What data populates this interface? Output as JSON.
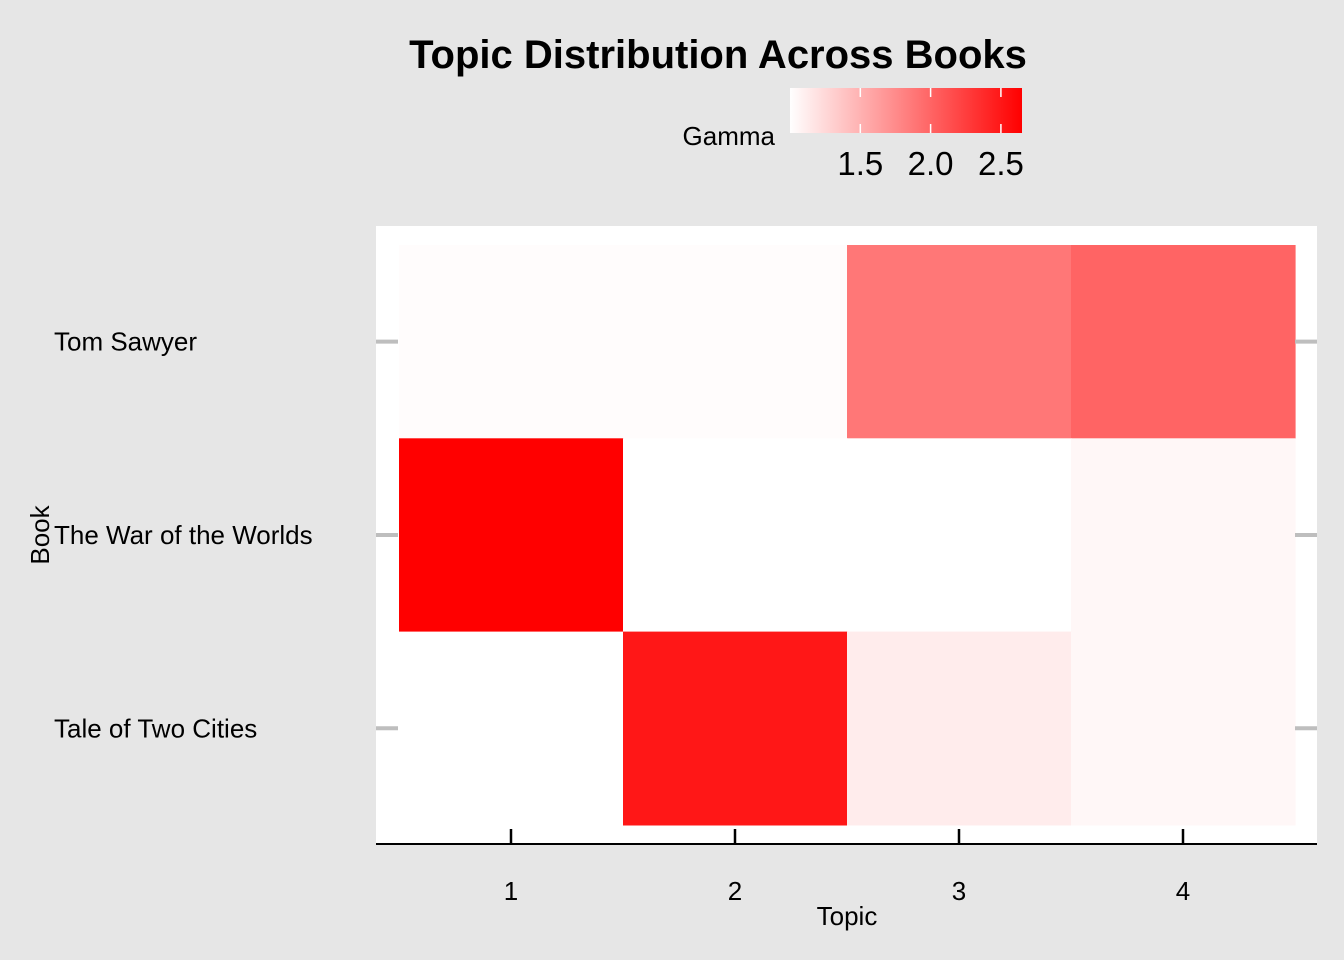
{
  "chart_data": {
    "type": "heatmap",
    "title": "Topic Distribution Across Books",
    "xlabel": "Topic",
    "ylabel": "Book",
    "x_categories": [
      "1",
      "2",
      "3",
      "4"
    ],
    "y_categories": [
      "Tom Sawyer",
      "The War of the Worlds",
      "Tale of Two Cities"
    ],
    "values": [
      [
        1.02,
        1.02,
        1.88,
        2.0
      ],
      [
        2.65,
        1.0,
        1.0,
        1.05
      ],
      [
        1.0,
        2.5,
        1.12,
        1.05
      ]
    ],
    "legend": {
      "title": "Gamma",
      "position": "top",
      "ticks": [
        1.5,
        2.0,
        2.5
      ],
      "tick_labels": [
        "1.5",
        "2.0",
        "2.5"
      ],
      "range": [
        1.0,
        2.65
      ],
      "color_low": "#ffffff",
      "color_high": "#ff0000"
    },
    "grid": false,
    "panel_background": "#ffffff",
    "plot_background": "#e6e6e6"
  }
}
